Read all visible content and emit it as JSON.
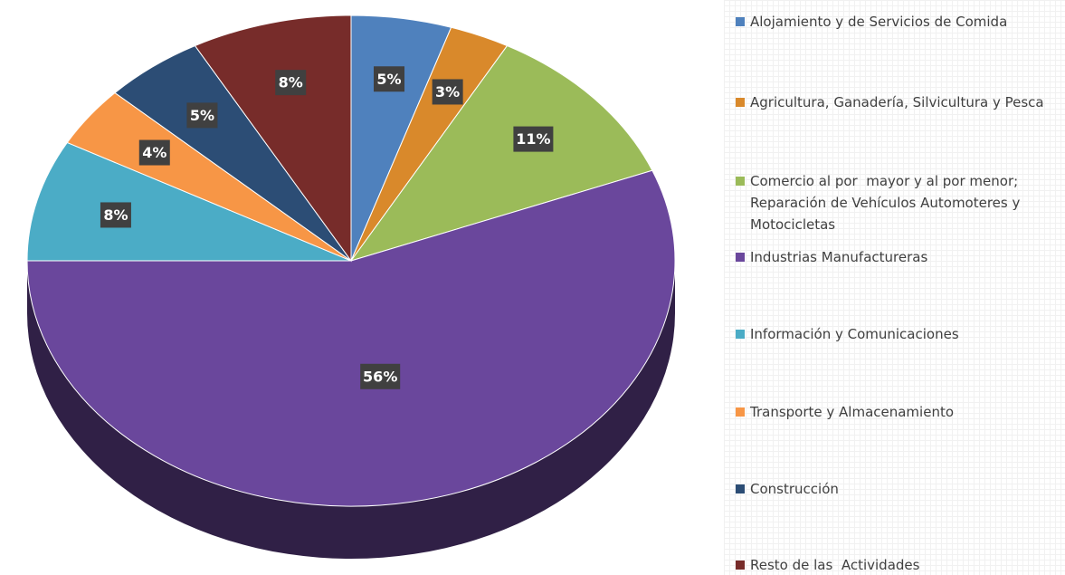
{
  "chart_data": {
    "type": "pie",
    "categories": [
      "Alojamiento y de Servicios de Comida",
      "Agricultura, Ganadería, Silvicultura y Pesca",
      "Comercio al por  mayor y al por menor; Reparación de Vehículos Automoteres y Motocicletas",
      "Industrias Manufactureras",
      "Información y Comunicaciones",
      "Transporte y Almacenamiento",
      "Construcción",
      "Resto de las  Actividades"
    ],
    "values": [
      5,
      3,
      11,
      56,
      8,
      4,
      5,
      8
    ],
    "value_labels": [
      "5%",
      "3%",
      "11%",
      "56%",
      "8%",
      "4%",
      "5%",
      "8%"
    ],
    "colors": [
      "#4f81bd",
      "#d9892b",
      "#9bbb59",
      "#6a479c",
      "#4bacc6",
      "#f79646",
      "#2c4d75",
      "#772c2a"
    ],
    "legend": "right"
  }
}
